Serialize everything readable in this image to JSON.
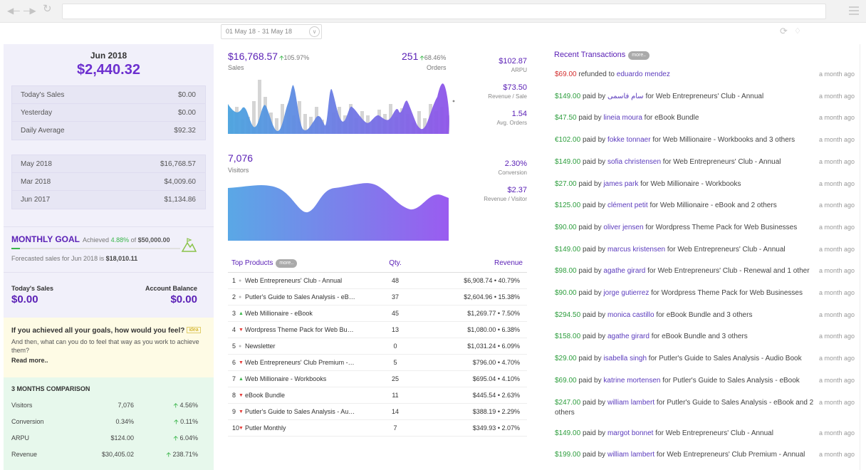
{
  "toolbar": {
    "date_from": "01 May 18",
    "date_to": "31 May 18"
  },
  "summary": {
    "month": "Jun 2018",
    "amount": "$2,440.32",
    "daily": [
      {
        "label": "Today's Sales",
        "value": "$0.00"
      },
      {
        "label": "Yesterday",
        "value": "$0.00"
      },
      {
        "label": "Daily Average",
        "value": "$92.32"
      }
    ],
    "history": [
      {
        "label": "May 2018",
        "value": "$16,768.57"
      },
      {
        "label": "Mar 2018",
        "value": "$4,009.60"
      },
      {
        "label": "Jun 2017",
        "value": "$1,134.86"
      }
    ]
  },
  "goal": {
    "title": "MONTHLY GOAL",
    "achieved_label": "Achieved",
    "achieved_pct": "4.88%",
    "of_label": "of",
    "target": "$50,000.00",
    "progress": 0.0488,
    "forecast_prefix": "Forecasted sales for Jun 2018 is",
    "forecast_value": "$18,010.11"
  },
  "balances": {
    "sales_label": "Today's Sales",
    "sales_value": "$0.00",
    "balance_label": "Account Balance",
    "balance_value": "$0.00"
  },
  "tip": {
    "question": "If you achieved all your goals, how would you feel?",
    "badge": "idea",
    "answer": "And then, what can you do to feel that way as you work to achieve them?",
    "read_more": "Read more.."
  },
  "comparison": {
    "title": "3 MONTHS COMPARISON",
    "rows": [
      {
        "label": "Visitors",
        "value": "7,076",
        "change": "4.56%"
      },
      {
        "label": "Conversion",
        "value": "0.34%",
        "change": "0.11%"
      },
      {
        "label": "ARPU",
        "value": "$124.00",
        "change": "6.04%"
      },
      {
        "label": "Revenue",
        "value": "$30,405.02",
        "change": "238.71%"
      }
    ]
  },
  "metrics": {
    "sales_value": "$16,768.57",
    "sales_change": "105.97%",
    "sales_label": "Sales",
    "orders_value": "251",
    "orders_change": "68.46%",
    "orders_label": "Orders",
    "arpu_value": "$102.87",
    "arpu_label": "ARPU",
    "rps_value": "$73.50",
    "rps_label": "Revenue / Sale",
    "avg_orders_value": "1.54",
    "avg_orders_label": "Avg. Orders",
    "visitors_value": "7,076",
    "visitors_label": "Visitors",
    "conversion_value": "2.30%",
    "conversion_label": "Conversion",
    "rpv_value": "$2.37",
    "rpv_label": "Revenue / Visitor"
  },
  "products": {
    "title": "Top Products",
    "more": "more..",
    "col_qty": "Qty.",
    "col_revenue": "Revenue",
    "rows": [
      {
        "n": "1",
        "trend": "same",
        "name": "Web Entrepreneurs' Club - Annual",
        "qty": "48",
        "revenue": "$6,908.74 • 40.79%"
      },
      {
        "n": "2",
        "trend": "same",
        "name": "Putler's Guide to Sales Analysis - eBook",
        "qty": "37",
        "revenue": "$2,604.96 • 15.38%"
      },
      {
        "n": "3",
        "trend": "up",
        "name": "Web Millionaire - eBook",
        "qty": "45",
        "revenue": "$1,269.77 • 7.50%"
      },
      {
        "n": "4",
        "trend": "down",
        "name": "Wordpress Theme Pack for Web Businesses",
        "qty": "13",
        "revenue": "$1,080.00 • 6.38%"
      },
      {
        "n": "5",
        "trend": "same",
        "name": "Newsletter",
        "qty": "0",
        "revenue": "$1,031.24 • 6.09%"
      },
      {
        "n": "6",
        "trend": "down",
        "name": "Web Entrepreneurs' Club Premium - Annual",
        "qty": "5",
        "revenue": "$796.00 • 4.70%"
      },
      {
        "n": "7",
        "trend": "up",
        "name": "Web Millionaire - Workbooks",
        "qty": "25",
        "revenue": "$695.04 • 4.10%"
      },
      {
        "n": "8",
        "trend": "down",
        "name": "eBook Bundle",
        "qty": "11",
        "revenue": "$445.54 • 2.63%"
      },
      {
        "n": "9",
        "trend": "down",
        "name": "Putler's Guide to Sales Analysis - Audio Book",
        "qty": "14",
        "revenue": "$388.19 • 2.29%"
      },
      {
        "n": "10",
        "trend": "down",
        "name": "Putler Monthly",
        "qty": "7",
        "revenue": "$349.93 • 2.07%"
      }
    ]
  },
  "transactions": {
    "title": "Recent Transactions",
    "more": "more..",
    "items": [
      {
        "amount": "$69.00",
        "verb": "refunded to",
        "who": "eduardo mendez",
        "for": "",
        "product": "",
        "ago": "a month ago",
        "refund": true
      },
      {
        "amount": "$149.00",
        "verb": "paid by",
        "who": "سام فاسمی",
        "for": "for",
        "product": "Web Entrepreneurs' Club - Annual",
        "ago": "a month ago"
      },
      {
        "amount": "$47.50",
        "verb": "paid by",
        "who": "lineia moura",
        "for": "for",
        "product": "eBook Bundle",
        "ago": "a month ago"
      },
      {
        "amount": "€102.00",
        "verb": "paid by",
        "who": "fokke tonnaer",
        "for": "for",
        "product": "Web Millionaire - Workbooks and 3 others",
        "ago": "a month ago"
      },
      {
        "amount": "$149.00",
        "verb": "paid by",
        "who": "sofia christensen",
        "for": "for",
        "product": "Web Entrepreneurs' Club - Annual",
        "ago": "a month ago"
      },
      {
        "amount": "$27.00",
        "verb": "paid by",
        "who": "james park",
        "for": "for",
        "product": "Web Millionaire - Workbooks",
        "ago": "a month ago"
      },
      {
        "amount": "$125.00",
        "verb": "paid by",
        "who": "clément petit",
        "for": "for",
        "product": "Web Millionaire - eBook and 2 others",
        "ago": "a month ago"
      },
      {
        "amount": "$90.00",
        "verb": "paid by",
        "who": "oliver jensen",
        "for": "for",
        "product": "Wordpress Theme Pack for Web Businesses",
        "ago": "a month ago"
      },
      {
        "amount": "$149.00",
        "verb": "paid by",
        "who": "marcus kristensen",
        "for": "for",
        "product": "Web Entrepreneurs' Club - Annual",
        "ago": "a month ago"
      },
      {
        "amount": "$98.00",
        "verb": "paid by",
        "who": "agathe girard",
        "for": "for",
        "product": "Web Entrepreneurs' Club - Renewal and 1 other",
        "ago": "a month ago"
      },
      {
        "amount": "$90.00",
        "verb": "paid by",
        "who": "jorge gutierrez",
        "for": "for",
        "product": "Wordpress Theme Pack for Web Businesses",
        "ago": "a month ago"
      },
      {
        "amount": "$294.50",
        "verb": "paid by",
        "who": "monica castillo",
        "for": "for",
        "product": "eBook Bundle and 3 others",
        "ago": "a month ago"
      },
      {
        "amount": "$158.00",
        "verb": "paid by",
        "who": "agathe girard",
        "for": "for",
        "product": "eBook Bundle and 3 others",
        "ago": "a month ago"
      },
      {
        "amount": "$29.00",
        "verb": "paid by",
        "who": "isabella singh",
        "for": "for",
        "product": "Putler's Guide to Sales Analysis - Audio Book",
        "ago": "a month ago"
      },
      {
        "amount": "$69.00",
        "verb": "paid by",
        "who": "katrine mortensen",
        "for": "for",
        "product": "Putler's Guide to Sales Analysis - eBook",
        "ago": "a month ago"
      },
      {
        "amount": "$247.00",
        "verb": "paid by",
        "who": "william lambert",
        "for": "for",
        "product": "Putler's Guide to Sales Analysis - eBook and 2 others",
        "ago": "a month ago"
      },
      {
        "amount": "$149.00",
        "verb": "paid by",
        "who": "margot bonnet",
        "for": "for",
        "product": "Web Entrepreneurs' Club - Annual",
        "ago": "a month ago"
      },
      {
        "amount": "$199.00",
        "verb": "paid by",
        "who": "william lambert",
        "for": "for",
        "product": "Web Entrepreneurs' Club Premium - Annual",
        "ago": "a month ago"
      }
    ]
  }
}
